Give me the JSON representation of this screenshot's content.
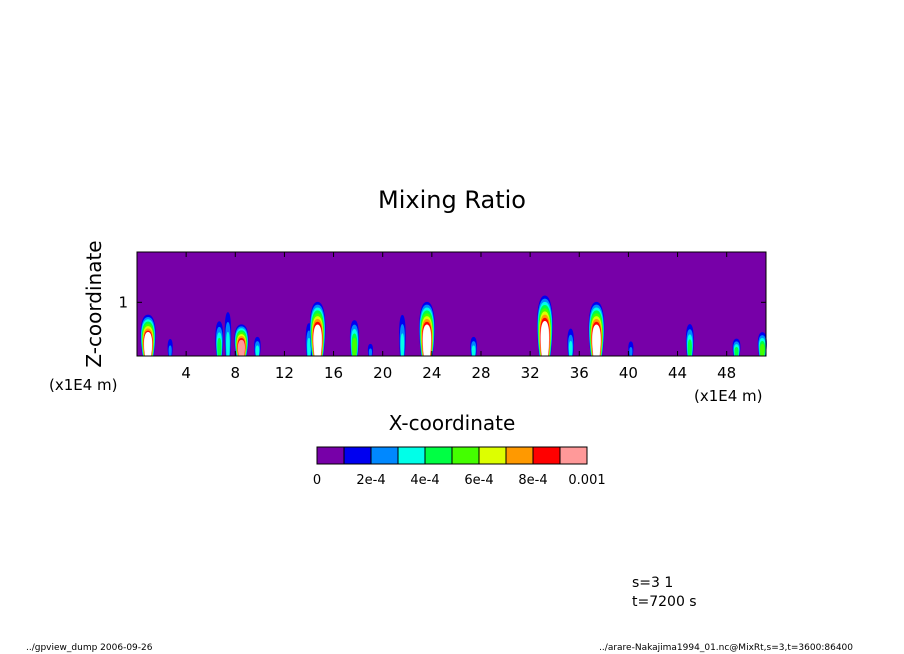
{
  "chart_data": {
    "type": "heatmap",
    "title": "Mixing Ratio",
    "xlabel": "X-coordinate",
    "ylabel": "Z-coordinate",
    "x_unit": "(x1E4 m)",
    "y_unit": "(x1E4 m)",
    "x_ticks": [
      4,
      8,
      12,
      16,
      20,
      24,
      28,
      32,
      36,
      40,
      44,
      48
    ],
    "y_ticks": [
      1
    ],
    "xlim": [
      0,
      51.2
    ],
    "ylim": [
      0.2,
      1.75
    ],
    "colorbar": {
      "levels": [
        0,
        0.0001,
        0.0002,
        0.0003,
        0.0004,
        0.0005,
        0.0006,
        0.0007,
        0.0008,
        0.0009,
        0.001
      ],
      "labels": [
        "0",
        "2e-4",
        "4e-4",
        "6e-4",
        "8e-4",
        "0.001"
      ],
      "colors": [
        "#7700a8",
        "#0000f0",
        "#0088ff",
        "#00ffe8",
        "#00ff44",
        "#44ff00",
        "#ddff00",
        "#ff9900",
        "#ff0000",
        "#ff9999"
      ]
    },
    "plumes": [
      {
        "x": 0.9,
        "top": 0.85,
        "peak": 0.00105
      },
      {
        "x": 2.7,
        "top": 0.55,
        "peak": 0.0002
      },
      {
        "x": 6.7,
        "top": 0.8,
        "peak": 0.0004
      },
      {
        "x": 7.4,
        "top": 1.0,
        "peak": 0.0003
      },
      {
        "x": 8.5,
        "top": 0.7,
        "peak": 0.00095
      },
      {
        "x": 9.8,
        "top": 0.55,
        "peak": 0.0003
      },
      {
        "x": 14.0,
        "top": 0.8,
        "peak": 0.0003
      },
      {
        "x": 14.7,
        "top": 1.05,
        "peak": 0.0011
      },
      {
        "x": 17.7,
        "top": 0.8,
        "peak": 0.0005
      },
      {
        "x": 19.0,
        "top": 0.45,
        "peak": 0.0002
      },
      {
        "x": 21.6,
        "top": 0.95,
        "peak": 0.0003
      },
      {
        "x": 23.6,
        "top": 1.05,
        "peak": 0.0011
      },
      {
        "x": 27.4,
        "top": 0.55,
        "peak": 0.0003
      },
      {
        "x": 33.2,
        "top": 1.15,
        "peak": 0.0011
      },
      {
        "x": 35.3,
        "top": 0.7,
        "peak": 0.0003
      },
      {
        "x": 37.4,
        "top": 1.05,
        "peak": 0.0011
      },
      {
        "x": 40.2,
        "top": 0.5,
        "peak": 0.0002
      },
      {
        "x": 45.0,
        "top": 0.75,
        "peak": 0.0004
      },
      {
        "x": 48.8,
        "top": 0.5,
        "peak": 0.0004
      },
      {
        "x": 50.9,
        "top": 0.6,
        "peak": 0.0005
      }
    ]
  },
  "footer": {
    "params_line1": "s=3 1",
    "params_line2": "t=7200 s",
    "left_note": "../gpview_dump  2006-09-26",
    "right_note": "../arare-Nakajima1994_01.nc@MixRt,s=3,t=3600:86400"
  }
}
